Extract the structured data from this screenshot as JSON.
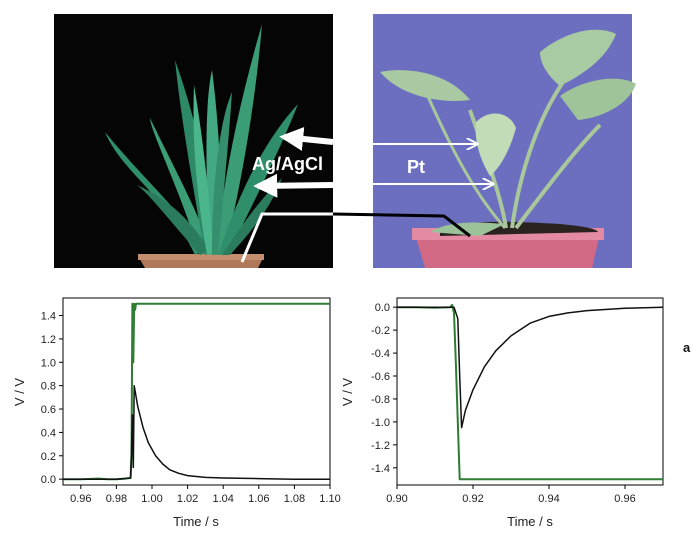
{
  "photos": {
    "left_plant": "aloe-vera-plant",
    "right_plant": "green-leafy-plant-in-pot",
    "electrode_left_label": "Ag/AgCl",
    "electrode_right_label": "Pt"
  },
  "panel_label": "a",
  "colors": {
    "series_black": "#111111",
    "series_green": "#2e7d32",
    "left_photo_bg": "#050505",
    "right_photo_bg": "#6c6fc0"
  },
  "chart_data": [
    {
      "type": "line",
      "xlabel": "Time / s",
      "ylabel": "V / V",
      "xlim": [
        0.95,
        1.1
      ],
      "ylim": [
        -0.05,
        1.55
      ],
      "x_ticks": [
        "0.96",
        "0.98",
        "1.00",
        "1.02",
        "1.04",
        "1.06",
        "1.08",
        "1.10"
      ],
      "y_ticks": [
        "0.0",
        "0.2",
        "0.4",
        "0.6",
        "0.8",
        "1.0",
        "1.2",
        "1.4"
      ],
      "grid": false,
      "series": [
        {
          "color": "#2e7d32",
          "x": [
            0.95,
            0.96,
            0.97,
            0.975,
            0.98,
            0.985,
            0.988,
            0.9885,
            0.989,
            0.9895,
            0.99,
            0.9905,
            0.991,
            0.992,
            1.0,
            1.05,
            1.1
          ],
          "y": [
            0.0,
            0.0,
            0.005,
            0.0,
            0.0,
            0.005,
            0.01,
            0.2,
            1.5,
            1.0,
            1.5,
            1.45,
            1.5,
            1.5,
            1.5,
            1.5,
            1.5
          ]
        },
        {
          "color": "#111111",
          "x": [
            0.95,
            0.98,
            0.988,
            0.9885,
            0.989,
            0.9895,
            0.99,
            0.992,
            0.995,
            0.998,
            1.002,
            1.006,
            1.01,
            1.015,
            1.02,
            1.03,
            1.04,
            1.06,
            1.08,
            1.1
          ],
          "y": [
            0.0,
            0.0,
            0.01,
            0.25,
            0.55,
            0.1,
            0.8,
            0.62,
            0.44,
            0.31,
            0.2,
            0.13,
            0.08,
            0.05,
            0.03,
            0.015,
            0.01,
            0.005,
            0.0,
            0.0
          ]
        }
      ]
    },
    {
      "type": "line",
      "xlabel": "Time / s",
      "ylabel": "V / V",
      "xlim": [
        0.9,
        0.97
      ],
      "ylim": [
        -1.55,
        0.08
      ],
      "x_ticks": [
        "0.90",
        "0.92",
        "0.94",
        "0.96"
      ],
      "y_ticks": [
        "0.0",
        "-0.2",
        "-0.4",
        "-0.6",
        "-0.8",
        "-1.0",
        "-1.2",
        "-1.4"
      ],
      "grid": false,
      "series": [
        {
          "color": "#2e7d32",
          "x": [
            0.9,
            0.905,
            0.91,
            0.914,
            0.9145,
            0.915,
            0.9155,
            0.916,
            0.9165,
            0.917,
            0.92,
            0.94,
            0.97
          ],
          "y": [
            0.0,
            0.0,
            -0.005,
            0.0,
            0.02,
            -0.05,
            -0.5,
            -1.0,
            -1.5,
            -1.5,
            -1.5,
            -1.5,
            -1.5
          ]
        },
        {
          "color": "#111111",
          "x": [
            0.9,
            0.915,
            0.916,
            0.9165,
            0.917,
            0.918,
            0.92,
            0.923,
            0.926,
            0.93,
            0.935,
            0.94,
            0.945,
            0.95,
            0.96,
            0.97
          ],
          "y": [
            0.0,
            0.0,
            -0.1,
            -0.6,
            -1.05,
            -0.9,
            -0.72,
            -0.52,
            -0.38,
            -0.25,
            -0.14,
            -0.08,
            -0.05,
            -0.03,
            -0.01,
            0.0
          ]
        }
      ]
    }
  ]
}
